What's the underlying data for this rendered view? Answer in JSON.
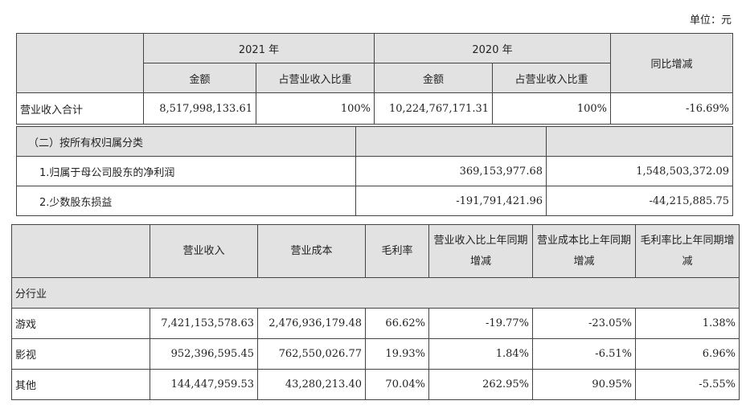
{
  "unit_label": "单位：元",
  "table1": {
    "year_2021": "2021 年",
    "year_2020": "2020 年",
    "yoy_header": "同比增减",
    "sub_headers": [
      "金额",
      "占营业收入比重",
      "金额",
      "占营业收入比重"
    ],
    "row": {
      "label": "营业收入合计",
      "amount_2021": "8,517,998,133.61",
      "ratio_2021": "100%",
      "amount_2020": "10,224,767,171.31",
      "ratio_2020": "100%",
      "yoy": "-16.69%"
    }
  },
  "table2": {
    "section_title": "（二）按所有权归属分类",
    "rows": [
      {
        "label": "1.归属于母公司股东的净利润",
        "v2021": "369,153,977.68",
        "v2020": "1,548,503,372.09"
      },
      {
        "label": "2.少数股东损益",
        "v2021": "-191,791,421.96",
        "v2020": "-44,215,885.75"
      }
    ]
  },
  "table3": {
    "headers": [
      "营业收入",
      "营业成本",
      "毛利率",
      "营业收入比上年同期增减",
      "营业成本比上年同期增减",
      "毛利率比上年同期增减"
    ],
    "section_label": "分行业",
    "rows": [
      {
        "label": "游戏",
        "revenue": "7,421,153,578.63",
        "cost": "2,476,936,179.48",
        "margin": "66.62%",
        "rev_chg": "-19.77%",
        "cost_chg": "-23.05%",
        "margin_chg": "1.38%"
      },
      {
        "label": "影视",
        "revenue": "952,396,595.45",
        "cost": "762,550,026.77",
        "margin": "19.93%",
        "rev_chg": "1.84%",
        "cost_chg": "-6.51%",
        "margin_chg": "6.96%"
      },
      {
        "label": "其他",
        "revenue": "144,447,959.53",
        "cost": "43,280,213.40",
        "margin": "70.04%",
        "rev_chg": "262.95%",
        "cost_chg": "90.95%",
        "margin_chg": "-5.55%"
      }
    ]
  }
}
